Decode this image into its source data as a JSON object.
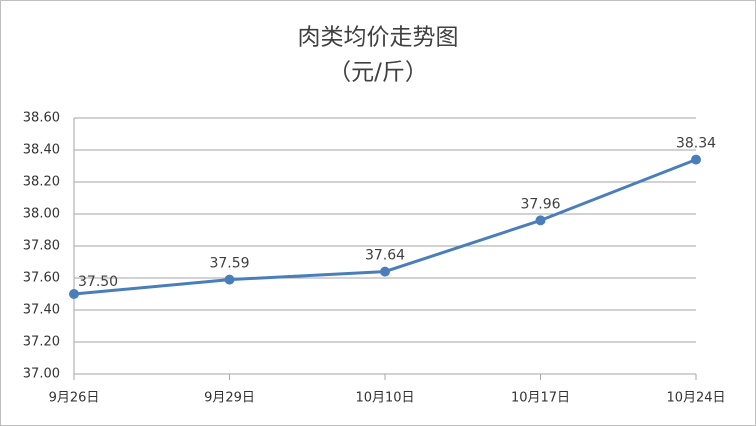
{
  "chart_data": {
    "type": "line",
    "title": "肉类均价走势图",
    "subtitle": "（元/斤）",
    "categories": [
      "9月26日",
      "9月29日",
      "10月10日",
      "10月17日",
      "10月24日"
    ],
    "values": [
      37.5,
      37.59,
      37.64,
      37.96,
      38.34
    ],
    "value_labels": [
      "37.50",
      "37.59",
      "37.64",
      "37.96",
      "38.34"
    ],
    "color": "#4a7ebb",
    "ylim": [
      37.0,
      38.6
    ],
    "yticks": [
      {
        "value": 37.0,
        "label": "37.00"
      },
      {
        "value": 37.2,
        "label": "37.20"
      },
      {
        "value": 37.4,
        "label": "37.40"
      },
      {
        "value": 37.6,
        "label": "37.60"
      },
      {
        "value": 37.8,
        "label": "37.80"
      },
      {
        "value": 38.0,
        "label": "38.00"
      },
      {
        "value": 38.2,
        "label": "38.20"
      },
      {
        "value": 38.4,
        "label": "38.40"
      },
      {
        "value": 38.6,
        "label": "38.60"
      }
    ],
    "grid": true
  }
}
